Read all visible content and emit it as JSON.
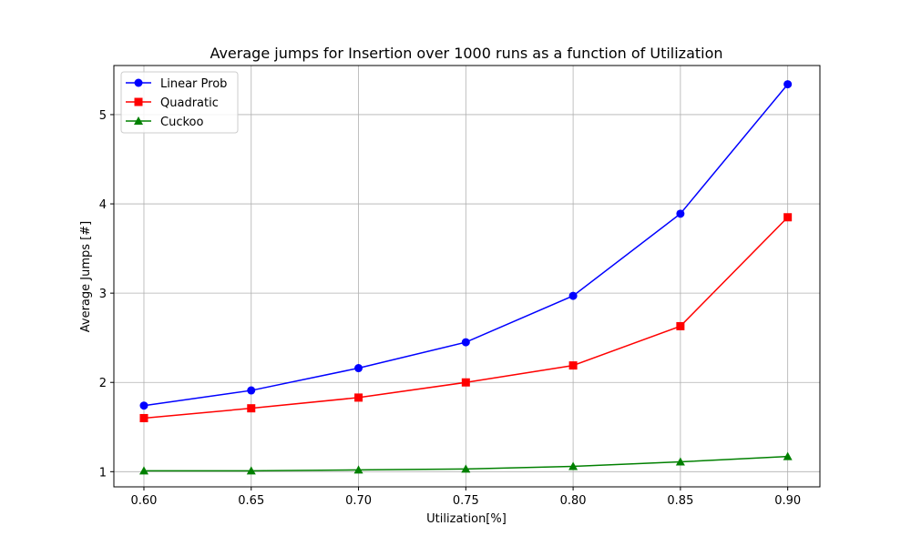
{
  "chart_data": {
    "type": "line",
    "title": "Average jumps for Insertion over 1000 runs as a function of Utilization",
    "xlabel": "Utilization[%]",
    "ylabel": "Average Jumps [#]",
    "x": [
      0.6,
      0.65,
      0.7,
      0.75,
      0.8,
      0.85,
      0.9
    ],
    "x_tick_labels": [
      "0.60",
      "0.65",
      "0.70",
      "0.75",
      "0.80",
      "0.85",
      "0.90"
    ],
    "y_ticks": [
      1,
      2,
      3,
      4,
      5
    ],
    "y_tick_labels": [
      "1",
      "2",
      "3",
      "4",
      "5"
    ],
    "xlim": [
      0.586,
      0.915
    ],
    "ylim": [
      0.83,
      5.55
    ],
    "grid": true,
    "legend_position": "top-left",
    "series": [
      {
        "name": "Linear Prob",
        "color": "#0000ff",
        "marker": "circle",
        "values": [
          1.74,
          1.91,
          2.16,
          2.45,
          2.97,
          3.89,
          5.34
        ]
      },
      {
        "name": "Quadratic",
        "color": "#ff0000",
        "marker": "square",
        "values": [
          1.6,
          1.71,
          1.83,
          2.0,
          2.19,
          2.63,
          3.85
        ]
      },
      {
        "name": "Cuckoo",
        "color": "#008000",
        "marker": "triangle",
        "values": [
          1.01,
          1.01,
          1.02,
          1.03,
          1.06,
          1.11,
          1.17
        ]
      }
    ]
  }
}
